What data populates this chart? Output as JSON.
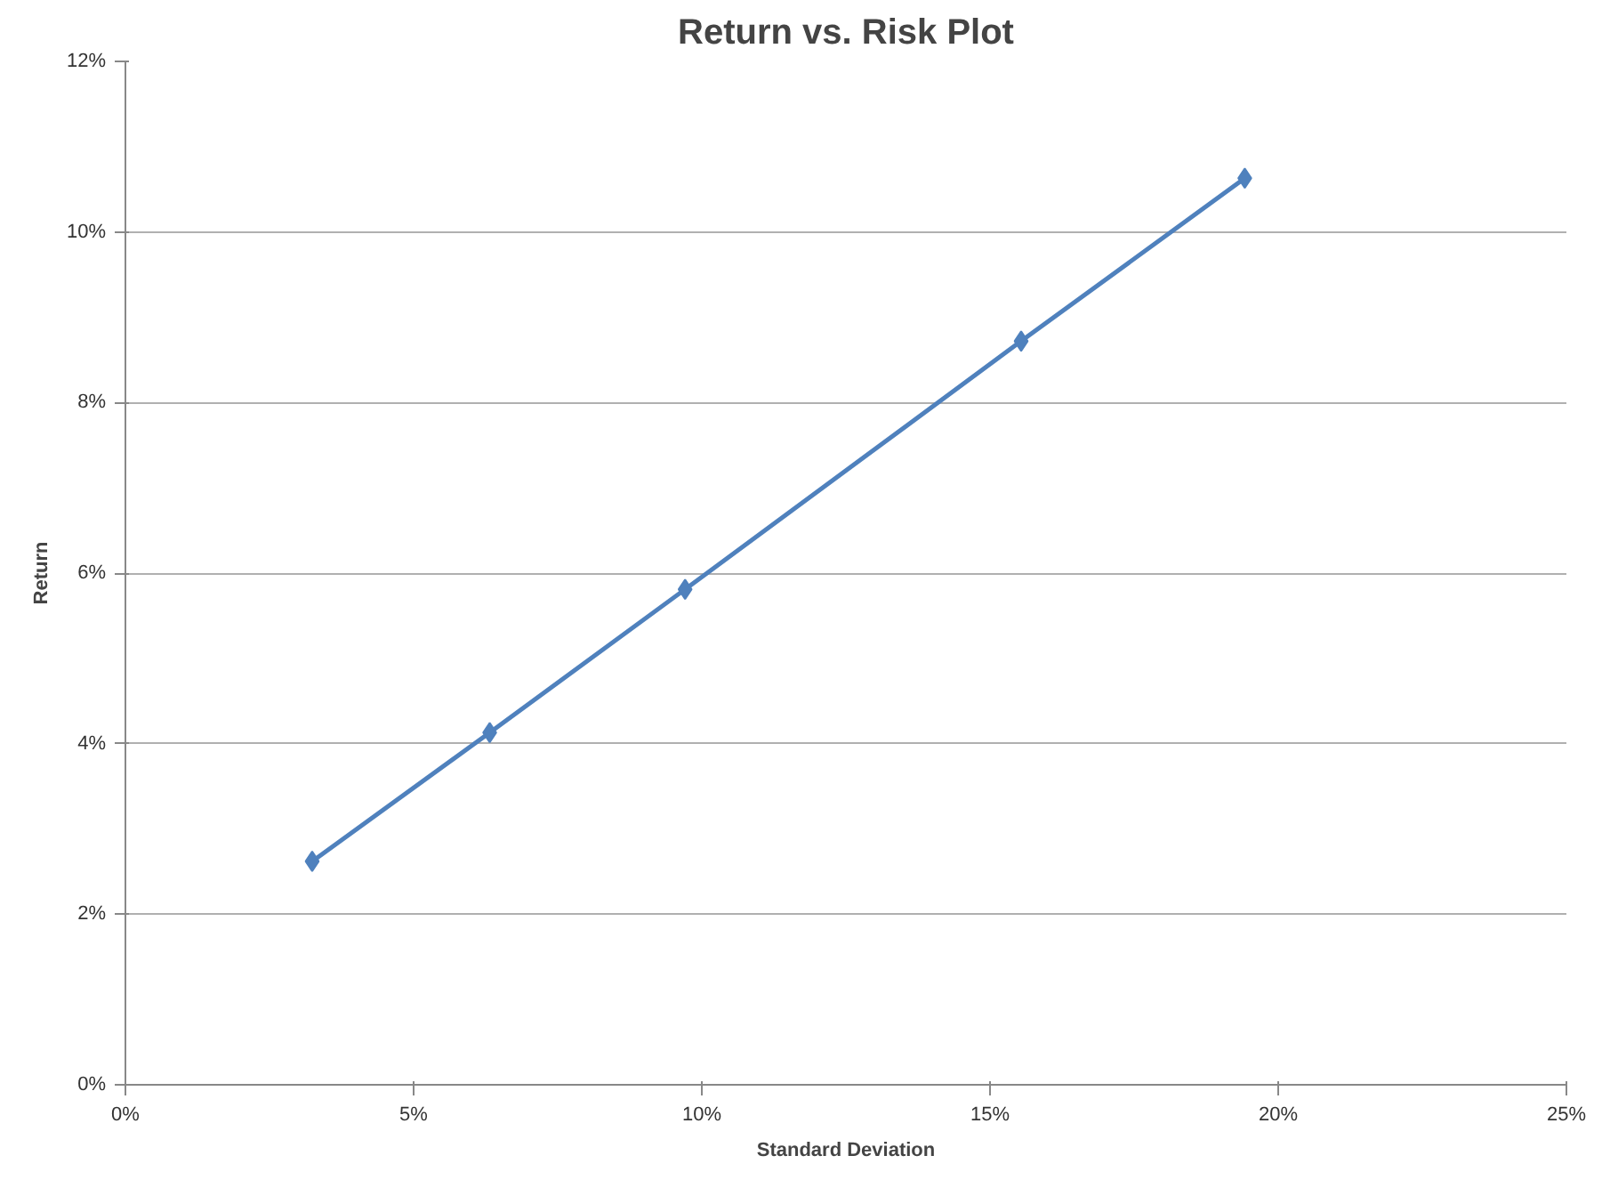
{
  "chart_data": {
    "type": "line",
    "title": "Return vs. Risk Plot",
    "xlabel": "Standard Deviation",
    "ylabel": "Return",
    "x": [
      3.24,
      6.32,
      9.71,
      15.54,
      19.42
    ],
    "series": [
      {
        "color": "#4f81bd",
        "values": [
          2.62,
          4.13,
          5.81,
          8.72,
          10.63
        ]
      }
    ],
    "xlim": [
      0,
      25
    ],
    "ylim": [
      0,
      12
    ],
    "xticks": [
      {
        "value": 0,
        "label": "0%"
      },
      {
        "value": 5,
        "label": "5%"
      },
      {
        "value": 10,
        "label": "10%"
      },
      {
        "value": 15,
        "label": "15%"
      },
      {
        "value": 20,
        "label": "20%"
      },
      {
        "value": 25,
        "label": "25%"
      }
    ],
    "yticks": [
      {
        "value": 0,
        "label": "0%"
      },
      {
        "value": 2,
        "label": "2%"
      },
      {
        "value": 4,
        "label": "4%"
      },
      {
        "value": 6,
        "label": "6%"
      },
      {
        "value": 8,
        "label": "8%"
      },
      {
        "value": 10,
        "label": "10%"
      },
      {
        "value": 12,
        "label": "12%"
      }
    ],
    "grid": "y",
    "marker": "diamond",
    "line_style": "solid"
  }
}
